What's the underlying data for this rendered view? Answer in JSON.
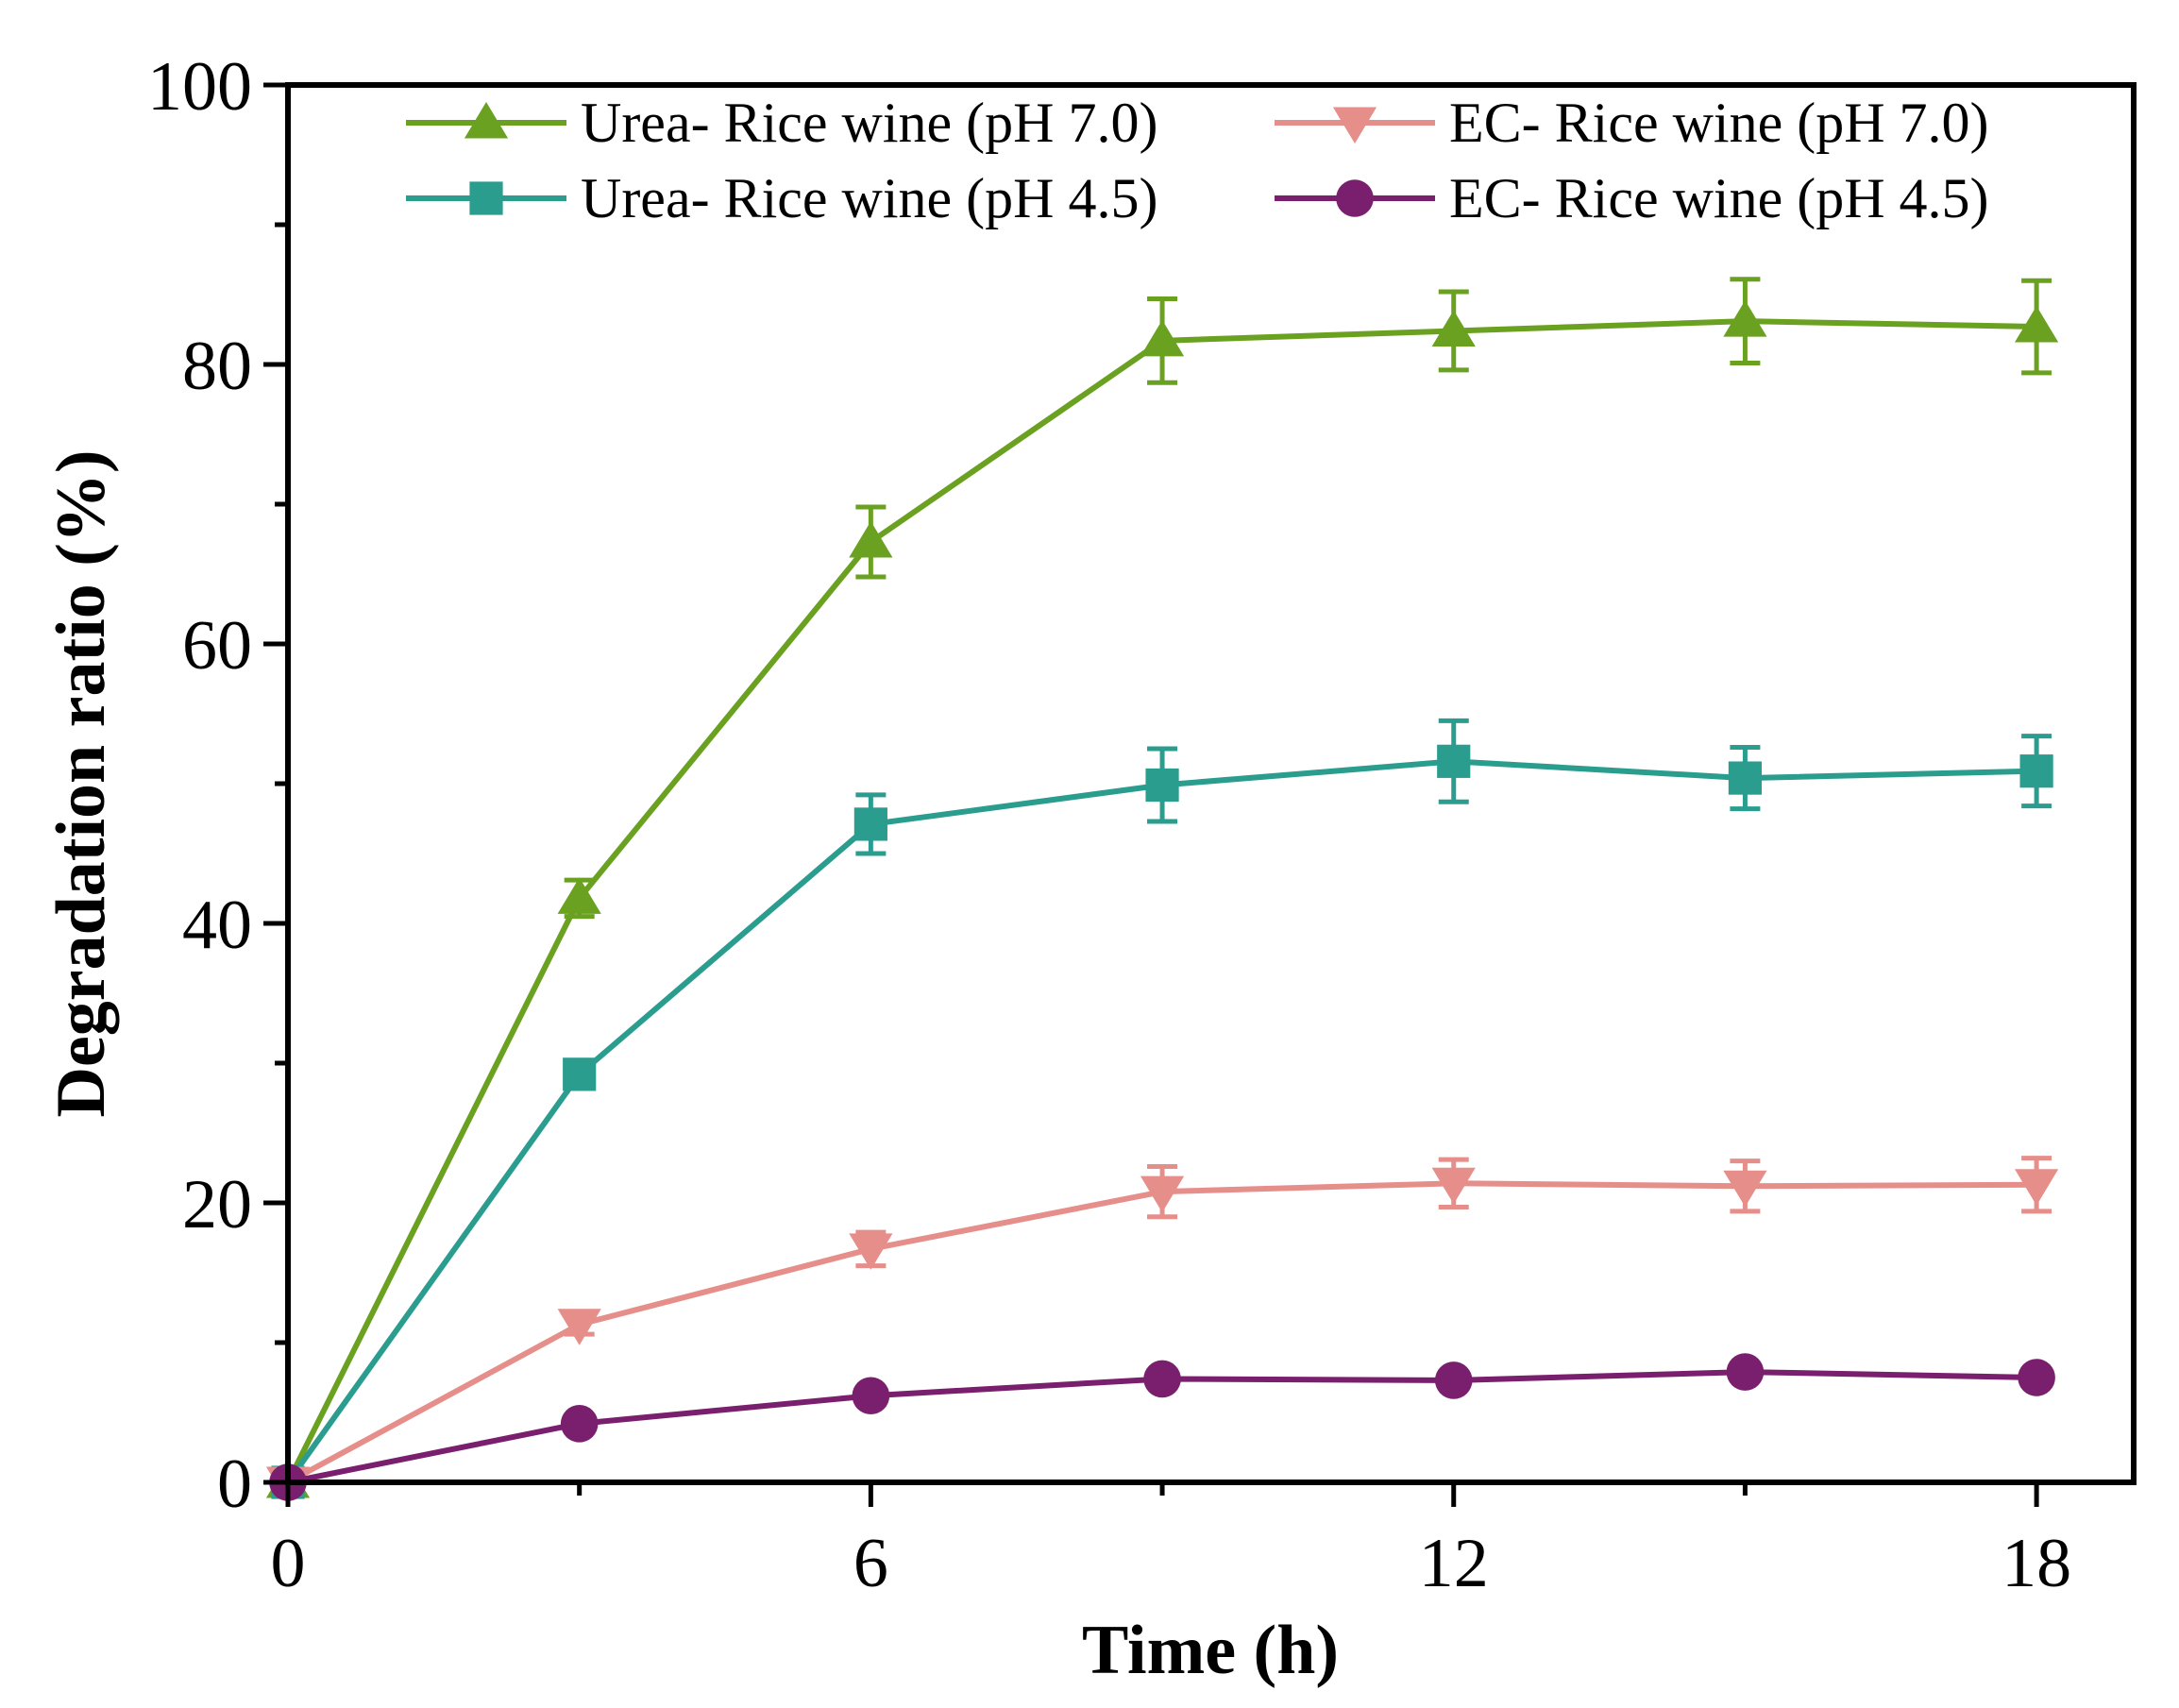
{
  "chart_data": {
    "type": "line",
    "title": "",
    "xlabel": "Time (h)",
    "ylabel": "Degradation ratio (%)",
    "xlim": [
      0,
      19
    ],
    "ylim": [
      0,
      100
    ],
    "xticks": [
      0,
      6,
      12,
      18
    ],
    "xtick_labels": [
      "0",
      "6",
      "12",
      "18"
    ],
    "yticks": [
      0,
      20,
      40,
      60,
      80,
      100
    ],
    "ytick_labels": [
      "0",
      "20",
      "40",
      "60",
      "80",
      "100"
    ],
    "x": [
      0,
      3,
      6,
      9,
      12,
      15,
      18
    ],
    "grid": false,
    "legend_position": "top",
    "series": [
      {
        "name": "Urea- Rice wine (pH 7.0)",
        "marker": "triangle-up",
        "color": "#6aa121",
        "values": [
          0,
          41.8,
          67.3,
          81.7,
          82.4,
          83.1,
          82.7
        ],
        "errors": [
          0,
          1.3,
          2.5,
          3.0,
          2.8,
          3.0,
          3.3
        ]
      },
      {
        "name": "Urea- Rice wine (pH 4.5)",
        "marker": "square",
        "color": "#2a9d8f",
        "values": [
          0,
          29.2,
          47.1,
          49.9,
          51.6,
          50.4,
          50.9
        ],
        "errors": [
          0,
          1.0,
          2.1,
          2.6,
          2.9,
          2.2,
          2.5
        ]
      },
      {
        "name": "EC- Rice wine (pH 7.0)",
        "marker": "triangle-down",
        "color": "#e68e8a",
        "values": [
          0,
          11.3,
          16.7,
          20.8,
          21.4,
          21.2,
          21.3
        ],
        "errors": [
          0,
          0.7,
          1.2,
          1.8,
          1.7,
          1.8,
          1.9
        ]
      },
      {
        "name": "EC- Rice wine (pH 4.5)",
        "marker": "circle",
        "color": "#7a1f6e",
        "values": [
          0,
          4.2,
          6.2,
          7.4,
          7.3,
          7.9,
          7.5
        ],
        "errors": [
          0,
          0,
          0,
          0,
          0,
          0,
          0
        ]
      }
    ]
  }
}
